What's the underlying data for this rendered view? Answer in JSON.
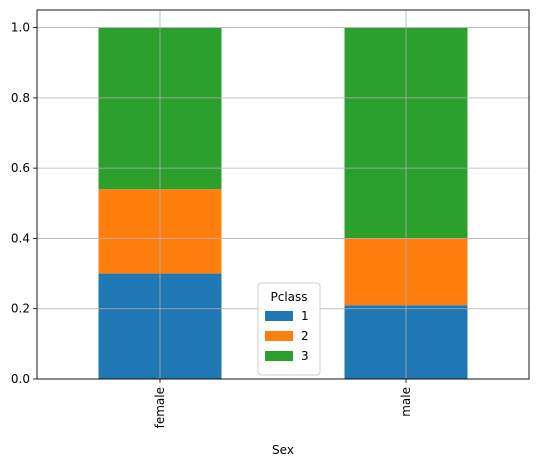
{
  "chart_data": {
    "type": "bar",
    "stacked": true,
    "categories": [
      "female",
      "male"
    ],
    "series": [
      {
        "name": "1",
        "values": [
          0.3,
          0.21
        ],
        "color": "#1f77b4"
      },
      {
        "name": "2",
        "values": [
          0.24,
          0.19
        ],
        "color": "#ff7f0e"
      },
      {
        "name": "3",
        "values": [
          0.46,
          0.6
        ],
        "color": "#2ca02c"
      }
    ],
    "xlabel": "Sex",
    "ylabel": "",
    "ylim": [
      0,
      1.05
    ],
    "yticks": [
      "0.0",
      "0.2",
      "0.4",
      "0.6",
      "0.8",
      "1.0"
    ],
    "grid": true,
    "legend": {
      "title": "Pclass",
      "placement": "lower-center"
    }
  }
}
